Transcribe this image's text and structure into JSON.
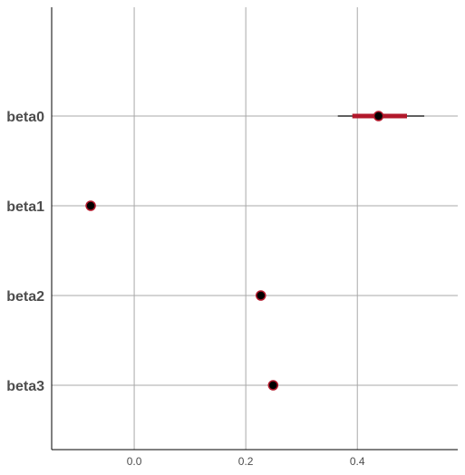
{
  "chart_data": {
    "type": "scatter",
    "title": "",
    "xlabel": "",
    "ylabel": "",
    "x_ticks": [
      0.0,
      0.2,
      0.4
    ],
    "x_tick_labels": [
      "0.0",
      "0.2",
      "0.4"
    ],
    "xlim": [
      -0.148,
      0.58
    ],
    "grid": true,
    "legend": "none",
    "colors": {
      "interval": "#b2182b",
      "thin_interval": "#000000",
      "point_fill": "#000000",
      "point_stroke": "#b2182b",
      "grid": "#a9a9a9",
      "axis": "#000000",
      "text": "#4d4d4d"
    },
    "categories": [
      "beta0",
      "beta1",
      "beta2",
      "beta3"
    ],
    "series": [
      {
        "estimates": [
          0.438,
          -0.078,
          0.227,
          0.249
        ],
        "inner_interval": [
          [
            0.391,
            0.489
          ],
          null,
          null,
          null
        ],
        "outer_interval": [
          [
            0.365,
            0.52
          ],
          null,
          null,
          null
        ]
      }
    ]
  }
}
